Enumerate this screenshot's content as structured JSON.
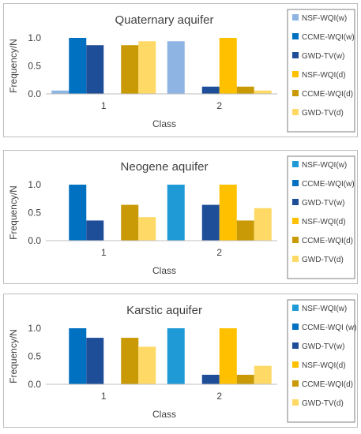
{
  "chart_data": [
    {
      "type": "bar",
      "title": "Quaternary aquifer",
      "xlabel": "Class",
      "ylabel": "Frequency/N",
      "categories": [
        "1",
        "2"
      ],
      "ylim": [
        0,
        1.0
      ],
      "yticks": [
        "0.0",
        "0.5",
        "1.0"
      ],
      "grid": false,
      "legend_position": "right",
      "series": [
        {
          "name": "NSF-WQI(w)",
          "color": "#8eb4e3",
          "values": [
            0.06,
            0.94
          ]
        },
        {
          "name": "CCME-WQI(w)",
          "color": "#0070c0",
          "values": [
            1.0,
            0.0
          ]
        },
        {
          "name": "GWD-TV(w)",
          "color": "#1f4e99",
          "values": [
            0.87,
            0.13
          ]
        },
        {
          "name": "NSF-WQI(d)",
          "color": "#ffc000",
          "values": [
            0.0,
            1.0
          ]
        },
        {
          "name": "CCME-WQI(d)",
          "color": "#c99a06",
          "values": [
            0.87,
            0.13
          ]
        },
        {
          "name": "GWD-TV(d)",
          "color": "#ffd966",
          "values": [
            0.94,
            0.06
          ]
        }
      ]
    },
    {
      "type": "bar",
      "title": "Neogene aquifer",
      "xlabel": "Class",
      "ylabel": "Frequency/N",
      "categories": [
        "1",
        "2"
      ],
      "ylim": [
        0,
        1.0
      ],
      "yticks": [
        "0.0",
        "0.5",
        "1.0"
      ],
      "grid": false,
      "legend_position": "right",
      "series": [
        {
          "name": "NSF-WQI(w)",
          "color": "#1f9ad6",
          "values": [
            0.0,
            1.0
          ]
        },
        {
          "name": "CCME-WQI(w)",
          "color": "#0070c0",
          "values": [
            1.0,
            0.0
          ]
        },
        {
          "name": "GWD-TV(w)",
          "color": "#1f4e99",
          "values": [
            0.36,
            0.64
          ]
        },
        {
          "name": "NSF-WQI(d)",
          "color": "#ffc000",
          "values": [
            0.0,
            1.0
          ]
        },
        {
          "name": "CCME-WQI(d)",
          "color": "#c99a06",
          "values": [
            0.64,
            0.36
          ]
        },
        {
          "name": "GWD-TV(d)",
          "color": "#ffd966",
          "values": [
            0.42,
            0.58
          ]
        }
      ]
    },
    {
      "type": "bar",
      "title": "Karstic aquifer",
      "xlabel": "Class",
      "ylabel": "Frequency/N",
      "categories": [
        "1",
        "2"
      ],
      "ylim": [
        0,
        1.0
      ],
      "yticks": [
        "0.0",
        "0.5",
        "1.0"
      ],
      "grid": false,
      "legend_position": "right",
      "series": [
        {
          "name": "NSF-WQI(w)",
          "color": "#1f9ad6",
          "values": [
            0.0,
            1.0
          ]
        },
        {
          "name": "CCME-WQI (w)",
          "color": "#0070c0",
          "values": [
            1.0,
            0.0
          ]
        },
        {
          "name": "GWD-TV(w)",
          "color": "#1f4e99",
          "values": [
            0.83,
            0.17
          ]
        },
        {
          "name": "NSF-WQI(d)",
          "color": "#ffc000",
          "values": [
            0.0,
            1.0
          ]
        },
        {
          "name": "CCME-WQI(d)",
          "color": "#c99a06",
          "values": [
            0.83,
            0.17
          ]
        },
        {
          "name": "GWD-TV(d)",
          "color": "#ffd966",
          "values": [
            0.67,
            0.33
          ]
        }
      ]
    }
  ]
}
